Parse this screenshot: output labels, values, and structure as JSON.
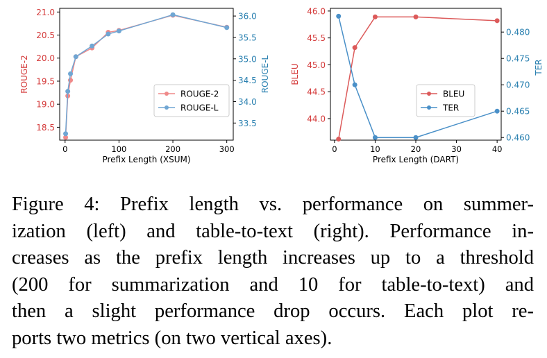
{
  "chart_data": [
    {
      "type": "line",
      "xlabel": "Prefix Length (XSUM)",
      "ylabel_left": "ROUGE-2",
      "ylabel_right": "ROUGE-L",
      "xlim": [
        -10,
        312
      ],
      "ylim_left": [
        18.22,
        21.08
      ],
      "ylim_right": [
        33.1,
        36.18
      ],
      "x_ticks": [
        0,
        100,
        200,
        300
      ],
      "y_ticks_left": [
        18.5,
        19.0,
        19.5,
        20.0,
        20.5,
        21.0
      ],
      "y_ticks_right": [
        33.5,
        34.0,
        34.5,
        35.0,
        35.5,
        36.0
      ],
      "legend_position": "center-right",
      "series": [
        {
          "name": "ROUGE-2",
          "axis": "left",
          "color": "#ef8a8a",
          "x": [
            1,
            5,
            10,
            20,
            50,
            80,
            100,
            200,
            300
          ],
          "y": [
            18.28,
            19.18,
            19.52,
            20.03,
            20.22,
            20.56,
            20.6,
            20.93,
            20.67
          ]
        },
        {
          "name": "ROUGE-L",
          "axis": "right",
          "color": "#70a6d3",
          "x": [
            1,
            5,
            10,
            20,
            50,
            80,
            100,
            200,
            300
          ],
          "y": [
            33.25,
            34.24,
            34.65,
            35.05,
            35.3,
            35.58,
            35.65,
            36.03,
            35.73
          ]
        }
      ]
    },
    {
      "type": "line",
      "xlabel": "Prefix Length (DART)",
      "ylabel_left": "BLEU",
      "ylabel_right": "TER",
      "xlim": [
        -1,
        41
      ],
      "ylim_left": [
        43.6,
        46.05
      ],
      "ylim_right": [
        0.4595,
        0.4845
      ],
      "x_ticks": [
        0,
        10,
        20,
        30,
        40
      ],
      "y_ticks_left": [
        44.0,
        44.5,
        45.0,
        45.5,
        46.0
      ],
      "y_ticks_right": [
        0.46,
        0.465,
        0.47,
        0.475,
        0.48
      ],
      "legend_position": "center-right",
      "series": [
        {
          "name": "BLEU",
          "axis": "left",
          "color": "#dc5a5a",
          "x": [
            1,
            5,
            10,
            20,
            40
          ],
          "y": [
            43.62,
            45.32,
            45.89,
            45.89,
            45.82
          ]
        },
        {
          "name": "TER",
          "axis": "right",
          "color": "#4a90c8",
          "x": [
            1,
            5,
            10,
            20,
            40
          ],
          "y": [
            0.483,
            0.47,
            0.46,
            0.46,
            0.465
          ]
        }
      ]
    }
  ],
  "colors": {
    "left_axis_text": "#d43a3a",
    "right_axis_text": "#2a80b0",
    "axis_line": "#000000"
  },
  "caption": {
    "lines": [
      "Figure 4:   Prefix length vs. performance on summer-",
      "ization (left) and table-to-text (right).  Performance in-",
      "creases as the prefix length increases up to a threshold",
      "(200 for summarization and 10 for table-to-text) and",
      "then a slight performance drop occurs.  Each plot re-",
      "ports two metrics (on two vertical axes)."
    ]
  }
}
